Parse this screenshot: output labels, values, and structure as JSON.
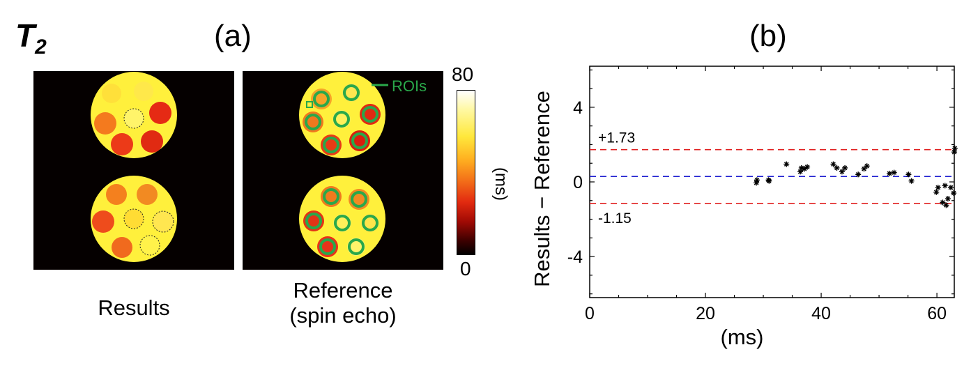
{
  "figure": {
    "quantity_label": "T",
    "quantity_sub": "2",
    "panel_a_label": "(a)",
    "panel_b_label": "(b)",
    "results_caption": "Results",
    "reference_caption_line1": "Reference",
    "reference_caption_line2": "(spin echo)",
    "roi_legend_label": "ROIs",
    "colorbar": {
      "max_label": "80",
      "min_label": "0",
      "unit": "(ms)",
      "range": [
        0,
        80
      ]
    },
    "colors": {
      "roi_ring": "#2aa84a",
      "mean_line": "#2020d0",
      "limit_line": "#e02020",
      "background": "#050000"
    }
  },
  "chart_data": {
    "type": "scatter",
    "title": "(b)",
    "xlabel": "(ms)",
    "ylabel": "Results − Reference",
    "xlim": [
      0,
      63
    ],
    "ylim": [
      -6.2,
      6.2
    ],
    "xticks": [
      0,
      20,
      40,
      60
    ],
    "yticks": [
      -4,
      0,
      4
    ],
    "grid": false,
    "reference_lines": [
      {
        "name": "upper",
        "y": 1.73,
        "label": "+1.73",
        "color": "#e02020",
        "style": "dashed"
      },
      {
        "name": "mean",
        "y": 0.29,
        "label": "",
        "color": "#2020d0",
        "style": "dashed"
      },
      {
        "name": "lower",
        "y": -1.15,
        "label": "-1.15",
        "color": "#e02020",
        "style": "dashed"
      }
    ],
    "series": [
      {
        "marker": "*",
        "color": "#000000",
        "points": [
          [
            28.8,
            -0.05
          ],
          [
            28.9,
            0.1
          ],
          [
            30.9,
            0.1
          ],
          [
            31.0,
            0.05
          ],
          [
            34.0,
            0.95
          ],
          [
            36.4,
            0.55
          ],
          [
            36.6,
            0.75
          ],
          [
            37.1,
            0.7
          ],
          [
            37.6,
            0.8
          ],
          [
            42.1,
            0.95
          ],
          [
            42.7,
            0.75
          ],
          [
            43.6,
            0.55
          ],
          [
            44.1,
            0.75
          ],
          [
            46.4,
            0.4
          ],
          [
            47.4,
            0.7
          ],
          [
            47.9,
            0.85
          ],
          [
            51.8,
            0.45
          ],
          [
            52.6,
            0.5
          ],
          [
            55.1,
            0.4
          ],
          [
            55.6,
            0.05
          ],
          [
            59.9,
            -0.55
          ],
          [
            60.2,
            -0.3
          ],
          [
            61.0,
            -1.1
          ],
          [
            61.4,
            -0.2
          ],
          [
            61.6,
            -1.25
          ],
          [
            61.9,
            -0.9
          ],
          [
            62.4,
            -0.3
          ],
          [
            62.9,
            -0.6
          ],
          [
            63.0,
            1.6
          ],
          [
            63.1,
            1.8
          ]
        ]
      }
    ]
  }
}
